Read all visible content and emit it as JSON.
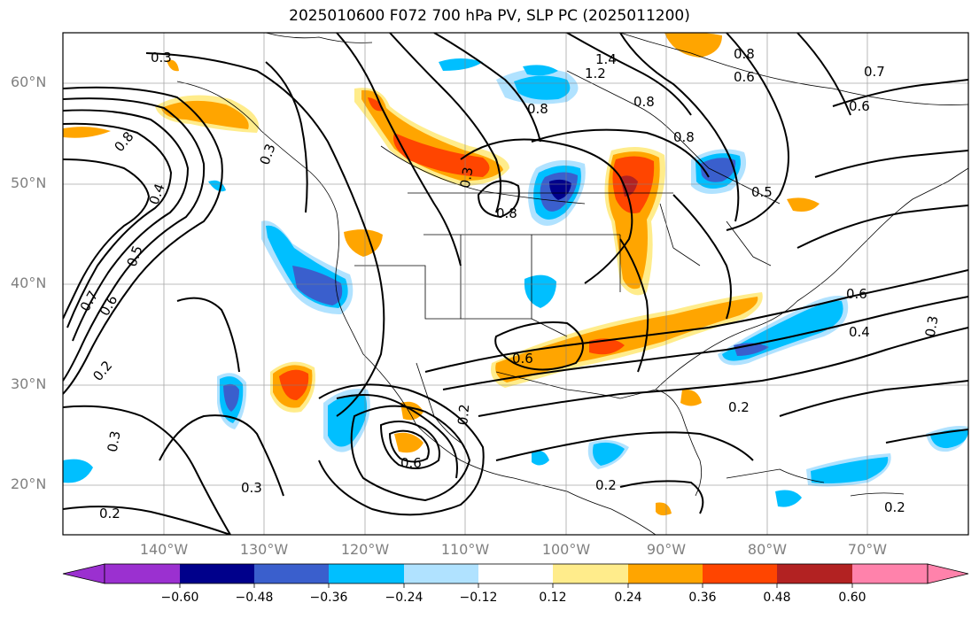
{
  "title": "2025010600 F072 700 hPa PV, SLP PC (2025011200)",
  "map": {
    "projection": "cylindrical",
    "lon_range": [
      -150,
      -60
    ],
    "lat_range": [
      15,
      65
    ],
    "lat_labels": [
      "60°N",
      "50°N",
      "40°N",
      "30°N",
      "20°N"
    ],
    "lon_labels": [
      "140°W",
      "130°W",
      "120°W",
      "110°W",
      "100°W",
      "90°W",
      "80°W",
      "70°W"
    ],
    "contour_labels": [
      "0.3",
      "0.8",
      "0.4",
      "0.5",
      "0.6",
      "0.7",
      "0.2",
      "0.3",
      "0.3",
      "0.2",
      "1.4",
      "1.2",
      "0.8",
      "0.8",
      "0.8",
      "0.8",
      "0.5",
      "0.6",
      "0.6",
      "0.7",
      "0.8",
      "0.6",
      "0.4",
      "0.3",
      "0.6",
      "0.6",
      "0.2",
      "0.2",
      "0.2",
      "0.2",
      "0.3",
      "0.3"
    ],
    "pv_colors": {
      "purple": "#9b30d0",
      "navy": "#00008b",
      "blue": "#3a5fcd",
      "cyan": "#00bfff",
      "light_blue": "#b0e2ff",
      "yellow": "#ffec8b",
      "orange": "#ffa500",
      "orange_red": "#ff4500",
      "firebrick": "#b22222",
      "pink": "#ff82ab"
    }
  },
  "colorbar": {
    "ticks": [
      "−0.60",
      "−0.48",
      "−0.36",
      "−0.24",
      "−0.12",
      "0.12",
      "0.24",
      "0.36",
      "0.48",
      "0.60"
    ],
    "colors": [
      "#9b30d0",
      "#00008b",
      "#3a5fcd",
      "#00bfff",
      "#b0e2ff",
      "#ffffff",
      "#ffec8b",
      "#ffa500",
      "#ff4500",
      "#b22222",
      "#ff82ab"
    ]
  }
}
